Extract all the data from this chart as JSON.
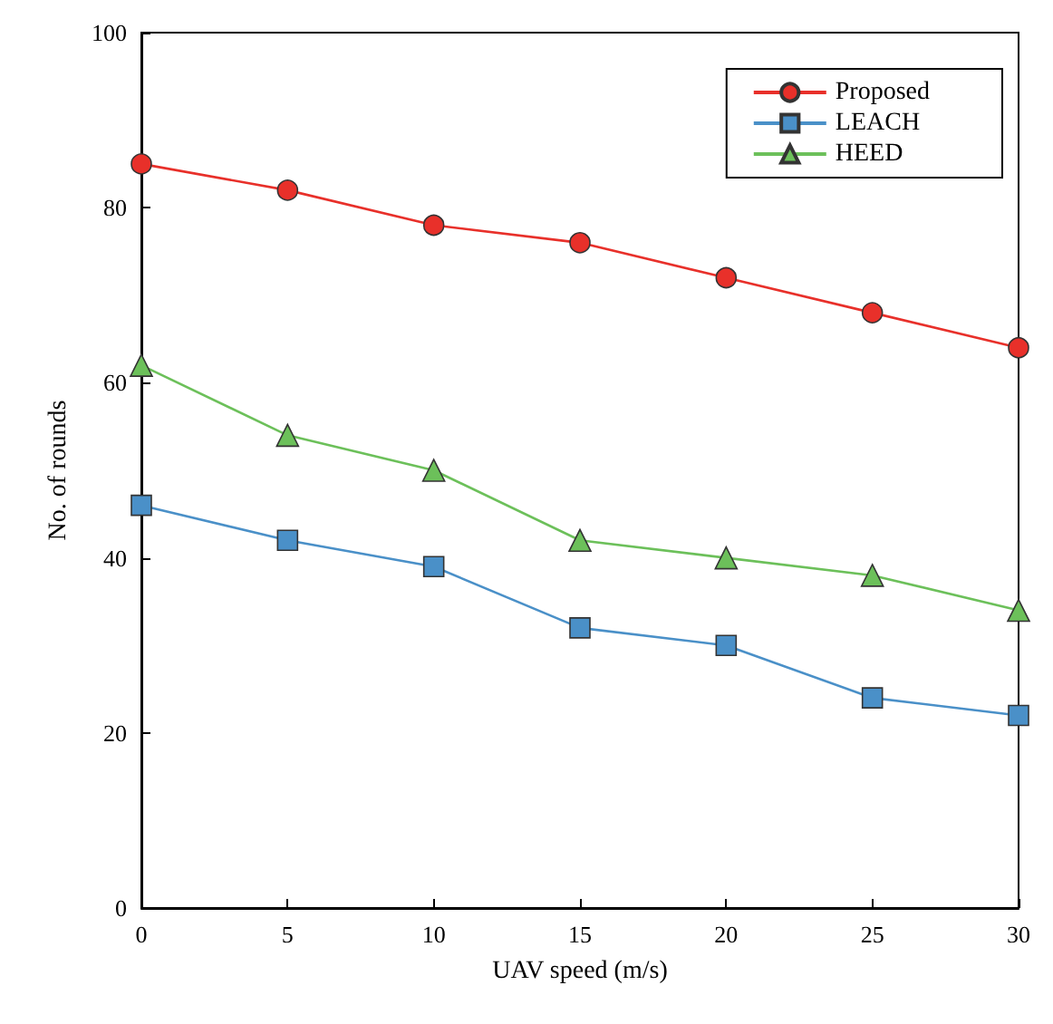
{
  "chart_data": {
    "type": "line",
    "xlabel": "UAV speed (m/s)",
    "ylabel": "No. of rounds",
    "x": [
      0,
      5,
      10,
      15,
      20,
      25,
      30
    ],
    "series": [
      {
        "name": "Proposed",
        "color": "#e8302a",
        "marker": "circle",
        "values": [
          85,
          82,
          78,
          76,
          72,
          68,
          64
        ]
      },
      {
        "name": "LEACH",
        "color": "#4a90c8",
        "marker": "square",
        "values": [
          46,
          42,
          39,
          32,
          30,
          24,
          22
        ]
      },
      {
        "name": "HEED",
        "color": "#6cc05a",
        "marker": "triangle",
        "values": [
          62,
          54,
          50,
          42,
          40,
          38,
          34
        ]
      }
    ],
    "xlim": [
      0,
      30
    ],
    "xticks": [
      0,
      5,
      10,
      15,
      20,
      25,
      30
    ],
    "ylim": [
      0,
      100
    ],
    "yticks": [
      0,
      20,
      40,
      60,
      80,
      100
    ],
    "grid": false,
    "legend": "top right",
    "line_style": "solid"
  }
}
